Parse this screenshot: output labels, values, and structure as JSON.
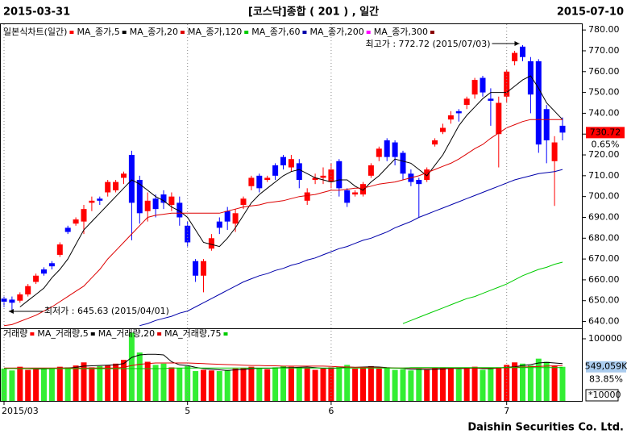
{
  "chart_data": {
    "type": "candlestick",
    "title": "[코스닥]종합 ( 201 ) , 일간",
    "start_date": "2015-03-31",
    "end_date": "2015-07-10",
    "footer": "Daishin Securities Co. Ltd.",
    "chart_label": "일본식차트(일간)",
    "chart_label_color": "#ff0000",
    "up_color": "#ff0000",
    "down_color": "#0000ff",
    "categories": [
      "2015/03",
      null,
      null,
      null,
      null,
      null,
      null,
      null,
      null,
      null,
      null,
      null,
      null,
      null,
      null,
      null,
      null,
      null,
      null,
      null,
      null,
      null,
      null,
      "5",
      null,
      null,
      null,
      null,
      null,
      null,
      null,
      null,
      null,
      null,
      null,
      null,
      null,
      null,
      null,
      null,
      null,
      "6",
      null,
      null,
      null,
      null,
      null,
      null,
      null,
      null,
      null,
      null,
      null,
      null,
      null,
      null,
      null,
      null,
      null,
      null,
      null,
      null,
      null,
      "7",
      null,
      null,
      null,
      null,
      null,
      null,
      null
    ],
    "open": [
      651,
      650.5,
      650,
      653,
      659,
      665,
      668,
      672,
      685,
      687,
      688,
      697,
      699,
      702,
      703,
      709,
      720,
      708,
      693,
      699,
      701,
      696,
      697,
      686,
      669,
      662,
      675,
      688,
      693,
      687,
      696,
      705,
      710,
      708,
      715,
      719,
      714,
      716,
      698,
      708,
      709,
      707,
      717,
      703,
      701,
      701,
      710,
      719,
      727,
      726,
      721,
      711,
      708,
      708,
      725,
      731,
      737,
      741,
      744,
      749,
      757,
      747,
      730,
      748,
      765,
      772,
      765,
      765,
      742,
      717,
      734
    ],
    "high": [
      652,
      652,
      654,
      658,
      663,
      666,
      669,
      678,
      686,
      690,
      696,
      700,
      700,
      708,
      708,
      712,
      722,
      710,
      702,
      701,
      703,
      702,
      700,
      688,
      670,
      670,
      682,
      690,
      695,
      694,
      700,
      710,
      711,
      710,
      716,
      720,
      720,
      718,
      704,
      711,
      714,
      716,
      718,
      704,
      703,
      707,
      716,
      724,
      728,
      727,
      722,
      713,
      709,
      714,
      728,
      735,
      741,
      742,
      748,
      757,
      758,
      752,
      748,
      761,
      770,
      772.72,
      767,
      766,
      744,
      729,
      738
    ],
    "low": [
      647,
      645.63,
      649,
      652,
      658,
      662,
      665,
      671,
      682,
      686,
      682,
      693,
      696,
      700,
      702,
      706,
      679,
      687,
      688,
      690,
      694,
      693,
      686,
      676,
      659,
      654,
      674,
      682,
      684,
      683,
      694,
      703,
      702,
      707,
      708,
      713,
      712,
      704,
      696,
      706,
      706,
      704,
      700,
      695,
      700,
      700,
      709,
      717,
      717,
      715,
      708,
      705,
      690,
      707,
      724,
      730,
      735,
      736,
      742,
      747,
      748,
      734,
      714,
      745,
      763,
      765,
      740,
      721,
      716,
      695.5,
      727
    ],
    "close": [
      649.5,
      649,
      653,
      657,
      662,
      663,
      666.5,
      677,
      683,
      689,
      694,
      698,
      698,
      707,
      707,
      711,
      697,
      692,
      698,
      694,
      697,
      700,
      690,
      678,
      662,
      669,
      680,
      685,
      688,
      692,
      699,
      709,
      704,
      709,
      710,
      715,
      718,
      708,
      702,
      709,
      710,
      713,
      704,
      697,
      702,
      706,
      715,
      723,
      719,
      719,
      711,
      707,
      706,
      713,
      727,
      733,
      739,
      740,
      747,
      756,
      750,
      746,
      745,
      760,
      769,
      767,
      749,
      725,
      727,
      726,
      730.72
    ],
    "ylim": [
      637.5,
      782
    ],
    "yticks": [
      {
        "value": 640,
        "label": "640.00"
      },
      {
        "value": 650,
        "label": "650.00"
      },
      {
        "value": 660,
        "label": "660.00"
      },
      {
        "value": 670,
        "label": "670.00"
      },
      {
        "value": 680,
        "label": "680.00"
      },
      {
        "value": 690,
        "label": "690.00"
      },
      {
        "value": 700,
        "label": "700.00"
      },
      {
        "value": 710,
        "label": "710.00"
      },
      {
        "value": 720,
        "label": "720.00"
      },
      {
        "value": 730,
        "label": "730.00"
      },
      {
        "value": 740,
        "label": "740.00"
      },
      {
        "value": 750,
        "label": "750.00"
      },
      {
        "value": 760,
        "label": "760.00"
      },
      {
        "value": 770,
        "label": "770.00"
      },
      {
        "value": 780,
        "label": "780.00"
      }
    ],
    "overlays": [
      {
        "name": "MA_종가,5",
        "color": "#000000",
        "values": [
          null,
          null,
          647,
          650,
          653,
          656,
          661,
          665,
          670,
          677,
          684,
          688,
          692,
          696,
          700,
          704,
          708,
          706,
          703,
          700,
          698,
          695,
          693,
          690,
          684,
          678,
          677,
          676,
          680,
          685,
          691,
          697,
          701,
          704,
          707,
          710,
          712,
          713,
          711,
          709,
          708,
          707,
          708,
          708,
          705,
          703,
          707,
          710,
          714,
          718,
          717,
          716,
          713,
          710,
          715,
          720,
          727,
          734,
          739,
          743,
          747,
          750,
          750,
          750,
          753,
          756,
          758,
          752,
          745,
          741,
          737
        ]
      },
      {
        "name": "MA_종가,20",
        "color": "#dd0000",
        "values": [
          638,
          638.5,
          640,
          641.5,
          643,
          645,
          647,
          649.5,
          652,
          654.5,
          657,
          661,
          665,
          670,
          674,
          678,
          682,
          686,
          690,
          691,
          691.5,
          692,
          692,
          692,
          692,
          692,
          692,
          692,
          693,
          694,
          695,
          695.5,
          696,
          697,
          697.5,
          698,
          699,
          700,
          700.5,
          701,
          702,
          703,
          703,
          703.5,
          704,
          704,
          705,
          706,
          706.5,
          707,
          708,
          709,
          710,
          711.5,
          713,
          714.5,
          716,
          718,
          720.5,
          723,
          725,
          728,
          730.5,
          733,
          734.5,
          736,
          737,
          737,
          737,
          737,
          737
        ]
      },
      {
        "name": "MA_종가,120",
        "color": "#00cc00",
        "values": [
          null,
          null,
          null,
          null,
          null,
          null,
          null,
          null,
          null,
          null,
          null,
          null,
          null,
          null,
          null,
          null,
          null,
          null,
          null,
          null,
          null,
          null,
          null,
          null,
          null,
          null,
          null,
          null,
          null,
          null,
          null,
          null,
          null,
          null,
          null,
          null,
          null,
          null,
          null,
          null,
          null,
          null,
          null,
          null,
          null,
          null,
          null,
          null,
          null,
          null,
          639,
          640.5,
          642,
          643.5,
          645,
          646.5,
          648,
          649.5,
          651,
          652,
          653.5,
          655,
          656.5,
          658,
          660,
          662,
          663.5,
          665,
          666,
          667.5,
          668.5
        ]
      },
      {
        "name": "MA_종가,60",
        "color": "#0000aa",
        "values": [
          null,
          null,
          null,
          null,
          null,
          null,
          null,
          null,
          null,
          null,
          null,
          null,
          null,
          null,
          null,
          null,
          null,
          638,
          639,
          640.5,
          641.5,
          642.5,
          644,
          645,
          647,
          649,
          651,
          653,
          655,
          657,
          659,
          660.5,
          662,
          663,
          664.5,
          665.5,
          667,
          668,
          669.5,
          670.5,
          672,
          673.5,
          675,
          676,
          677.5,
          679,
          680,
          681.5,
          683,
          685,
          686.5,
          688,
          690,
          691.5,
          693,
          694.5,
          696,
          697.5,
          699,
          700.5,
          702,
          703.5,
          705,
          706.5,
          708,
          709,
          710,
          711,
          711.5,
          712,
          713
        ]
      },
      {
        "name": "MA_종가,200",
        "color": "#ff00ff"
      },
      {
        "name": "MA_종가,300",
        "color": "#880000"
      }
    ],
    "annotations": {
      "high_label": "최고가 : 772.72 (2015/07/03)",
      "high_color": "#ff0000",
      "low_label": "최저가 : 645.63 (2015/04/01)",
      "low_color": "#000080"
    },
    "last_change_label": "0.65%",
    "volume": {
      "label": "거래량",
      "label_color": "#ff0000",
      "up_color": "#ff0000",
      "down_color": "#33ee33",
      "values": [
        52000,
        49000,
        55000,
        50000,
        51000,
        52000,
        53000,
        55000,
        54000,
        57000,
        62000,
        54000,
        56000,
        57000,
        60000,
        66000,
        110000,
        78000,
        63000,
        58000,
        60000,
        54000,
        53000,
        56000,
        48000,
        50000,
        49000,
        48000,
        50000,
        52000,
        53000,
        55000,
        52000,
        51000,
        54000,
        56000,
        55000,
        54000,
        53000,
        50000,
        52000,
        54000,
        55000,
        58000,
        52000,
        54000,
        56000,
        52000,
        53000,
        50000,
        51000,
        49000,
        52000,
        51000,
        53000,
        54000,
        52000,
        51000,
        53000,
        55000,
        50000,
        52000,
        54000,
        58000,
        62000,
        60000,
        57000,
        68000,
        63000,
        56000,
        54905.9
      ],
      "ylim": [
        0,
        115600
      ],
      "yticks": [
        100000
      ],
      "unit_label": "*10000",
      "last_label": "549,059K",
      "ratio_label": "83.85%",
      "overlays": [
        {
          "name": "MA_거래량,5",
          "color": "#000000",
          "values": [
            52000,
            52000,
            52000,
            52000,
            51500,
            51500,
            52000,
            53000,
            53000,
            54000,
            56000,
            56500,
            57000,
            57500,
            58000,
            60000,
            70000,
            74000,
            75000,
            75000,
            74000,
            63000,
            58000,
            57000,
            54000,
            52000,
            51000,
            50000,
            49000,
            50000,
            50500,
            52000,
            52500,
            52500,
            53000,
            53500,
            53500,
            54000,
            54500,
            53500,
            52500,
            52500,
            53000,
            54500,
            54000,
            54500,
            55000,
            54500,
            53500,
            53000,
            52500,
            51000,
            51000,
            50500,
            51000,
            51500,
            52500,
            52000,
            52500,
            53000,
            52000,
            52000,
            53000,
            54000,
            55000,
            57000,
            58500,
            61000,
            62000,
            61000,
            60000
          ]
        },
        {
          "name": "MA_거래량,20",
          "color": "#dd0000",
          "values": [
            53000,
            53000,
            53000,
            53000,
            53000,
            53000,
            53000,
            53000,
            53000,
            53000,
            53000,
            53000,
            53000,
            53000,
            53000,
            54000,
            57000,
            59000,
            60000,
            61000,
            61000,
            61000,
            61000,
            61000,
            60500,
            60000,
            59500,
            59000,
            58500,
            58000,
            57500,
            57000,
            57000,
            56500,
            56500,
            56000,
            56000,
            56000,
            56000,
            56000,
            56000,
            55500,
            55000,
            54500,
            54000,
            54000,
            53500,
            53500,
            53000,
            53000,
            53000,
            53000,
            53000,
            53000,
            53000,
            53000,
            53000,
            53000,
            53000,
            53000,
            53000,
            53000,
            53000,
            53500,
            54000,
            54500,
            55000,
            55500,
            56000,
            56500,
            57000
          ]
        },
        {
          "name": "MA_거래량,75",
          "color": "#00cc00",
          "values": [
            52000,
            52000,
            52000,
            52000,
            52000,
            52000,
            52000,
            52000,
            52000,
            52000,
            52000,
            52000,
            52000,
            52000,
            52000,
            52000,
            52000,
            52000,
            52000,
            52000,
            52000,
            53000,
            53000,
            53000,
            53000,
            53000,
            53000,
            53000,
            53000,
            53000,
            53000,
            53000,
            53000,
            53000,
            53000,
            53000,
            53000,
            53000,
            53000,
            53000,
            53000,
            53000,
            53000,
            53000,
            53000,
            53000,
            53000,
            53000,
            53000,
            53000,
            53000,
            53500,
            53500,
            53500,
            53500,
            53500,
            53500,
            53500,
            53500,
            53500,
            53500,
            53500,
            53500,
            53500,
            53500,
            53500,
            53500,
            53500,
            53500,
            53500,
            53500
          ]
        }
      ]
    }
  }
}
